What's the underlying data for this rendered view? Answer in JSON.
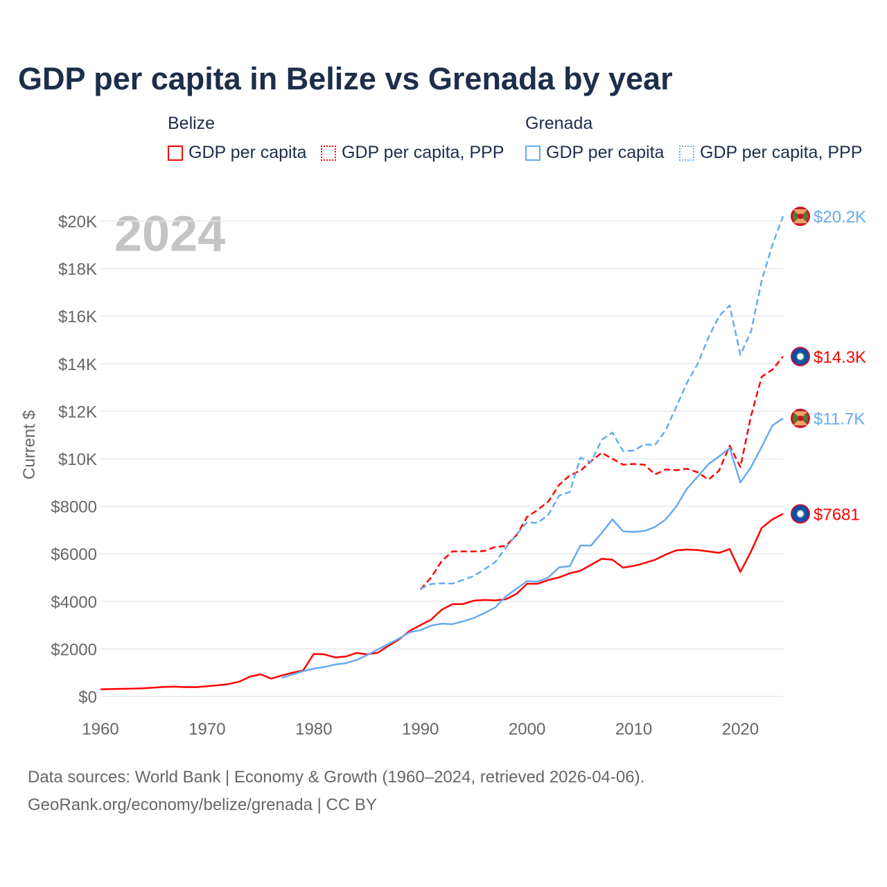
{
  "title": "GDP per capita in Belize vs Grenada by year",
  "legend": {
    "groups": [
      {
        "name": "Belize",
        "items": [
          "GDP per capita",
          "GDP per capita, PPP"
        ]
      },
      {
        "name": "Grenada",
        "items": [
          "GDP per capita",
          "GDP per capita, PPP"
        ]
      }
    ]
  },
  "colors": {
    "belize": "#ff0000",
    "grenada": "#66aaee"
  },
  "footer": {
    "line1": "Data sources: World Bank | Economy & Growth (1960–2024, retrieved 2026-04-06).",
    "line2": "GeoRank.org/economy/belize/grenada | CC BY"
  },
  "chart_data": {
    "type": "line",
    "title": "GDP per capita in Belize vs Grenada by year",
    "year_label": "2024",
    "ylabel": "Current $",
    "xlabel": "",
    "xlim": [
      1960,
      2024
    ],
    "ylim": [
      0,
      20000
    ],
    "x_ticks": [
      "1960",
      "1970",
      "1980",
      "1990",
      "2000",
      "2010",
      "2020"
    ],
    "x_tick_values": [
      1960,
      1970,
      1980,
      1990,
      2000,
      2010,
      2020
    ],
    "y_ticks": [
      "$0",
      "$2000",
      "$4000",
      "$6000",
      "$8000",
      "$10K",
      "$12K",
      "$14K",
      "$16K",
      "$18K",
      "$20K"
    ],
    "y_tick_values": [
      0,
      2000,
      4000,
      6000,
      8000,
      10000,
      12000,
      14000,
      16000,
      18000,
      20000
    ],
    "grid": true,
    "series": [
      {
        "name": "Belize GDP per capita",
        "country": "belize",
        "dashed": false,
        "start": 1960,
        "end_label": "$7681",
        "values": [
          300,
          310,
          320,
          330,
          340,
          370,
          400,
          410,
          390,
          390,
          430,
          470,
          520,
          620,
          830,
          930,
          750,
          880,
          1000,
          1090,
          1790,
          1770,
          1640,
          1680,
          1830,
          1770,
          1840,
          2130,
          2400,
          2760,
          3000,
          3230,
          3650,
          3880,
          3890,
          4030,
          4060,
          4040,
          4090,
          4310,
          4740,
          4740,
          4900,
          5010,
          5180,
          5290,
          5540,
          5790,
          5750,
          5420,
          5490,
          5610,
          5750,
          5970,
          6150,
          6180,
          6160,
          6100,
          6040,
          6200,
          5240,
          6100,
          7090,
          7450,
          7681
        ]
      },
      {
        "name": "Belize GDP per capita, PPP",
        "country": "belize",
        "dashed": true,
        "start": 1990,
        "end_label": "$14.3K",
        "values": [
          4500,
          5000,
          5700,
          6100,
          6100,
          6100,
          6120,
          6290,
          6330,
          6780,
          7550,
          7850,
          8200,
          8900,
          9300,
          9500,
          9900,
          10250,
          10000,
          9750,
          9780,
          9750,
          9340,
          9550,
          9520,
          9580,
          9430,
          9120,
          9500,
          10550,
          9650,
          11800,
          13450,
          13750,
          14300
        ]
      },
      {
        "name": "Grenada GDP per capita",
        "country": "grenada",
        "dashed": false,
        "start": 1977,
        "end_label": "$11.7K",
        "values": [
          780,
          920,
          1060,
          1170,
          1240,
          1340,
          1400,
          1530,
          1740,
          1980,
          2200,
          2440,
          2700,
          2790,
          2980,
          3060,
          3040,
          3160,
          3300,
          3510,
          3740,
          4200,
          4530,
          4850,
          4830,
          5010,
          5430,
          5480,
          6350,
          6350,
          6880,
          7450,
          6950,
          6920,
          6960,
          7130,
          7450,
          8000,
          8750,
          9250,
          9770,
          10100,
          10450,
          9000,
          9650,
          10500,
          11400,
          11700
        ]
      },
      {
        "name": "Grenada GDP per capita, PPP",
        "country": "grenada",
        "dashed": true,
        "start": 1990,
        "end_label": "$20.2K",
        "values": [
          4530,
          4730,
          4760,
          4750,
          4900,
          5070,
          5350,
          5650,
          6250,
          6800,
          7320,
          7300,
          7650,
          8450,
          8600,
          10050,
          9850,
          10800,
          11100,
          10320,
          10350,
          10600,
          10580,
          11200,
          12200,
          13200,
          14000,
          15100,
          16000,
          16450,
          14380,
          15350,
          17500,
          19000,
          20200
        ]
      }
    ]
  }
}
